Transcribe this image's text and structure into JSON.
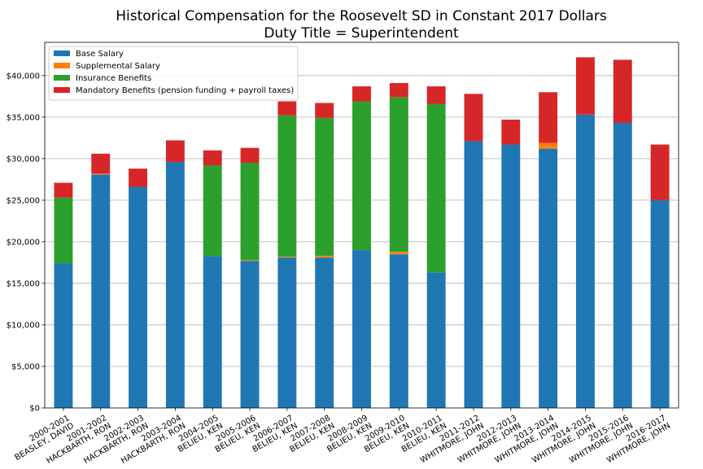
{
  "chart_data": {
    "type": "bar",
    "stacked": true,
    "title": "Historical Compensation for the Roosevelt SD in Constant 2017 Dollars",
    "subtitle": "Duty Title = Superintendent",
    "xlabel": "",
    "ylabel": "",
    "ylim": [
      0,
      44000
    ],
    "y_ticks": [
      0,
      5000,
      10000,
      15000,
      20000,
      25000,
      30000,
      35000,
      40000
    ],
    "y_tick_labels": [
      "$0",
      "$5,000",
      "$10,000",
      "$15,000",
      "$20,000",
      "$25,000",
      "$30,000",
      "$35,000",
      "$40,000"
    ],
    "grid": "horizontal",
    "legend_position": "top-left",
    "categories": [
      "2000-2001 BEASLEY, DAVID",
      "2001-2002 HACKBARTH, RON",
      "2002-2003 HACKBARTH, RON",
      "2003-2004 HACKBARTH, RON",
      "2004-2005 BELIEU, KEN",
      "2005-2006 BELIEU, KEN",
      "2006-2007 BELIEU, KEN",
      "2007-2008 BELIEU, KEN",
      "2008-2009 BELIEU, KEN",
      "2009-2010 BELIEU, KEN",
      "2010-2011 BELIEU, KEN",
      "2011-2012 WHITMORE, JOHN",
      "2012-2013 WHITMORE, JOHN",
      "2013-2014 WHITMORE, JOHN",
      "2014-2015 WHITMORE, JOHN",
      "2015-2016 WHITMORE, JOHN",
      "2016-2017 WHITMORE, JOHN"
    ],
    "category_lines": [
      [
        "2000-2001",
        "BEASLEY, DAVID"
      ],
      [
        "2001-2002",
        "HACKBARTH, RON"
      ],
      [
        "2002-2003",
        "HACKBARTH, RON"
      ],
      [
        "2003-2004",
        "HACKBARTH, RON"
      ],
      [
        "2004-2005",
        "BELIEU, KEN"
      ],
      [
        "2005-2006",
        "BELIEU, KEN"
      ],
      [
        "2006-2007",
        "BELIEU, KEN"
      ],
      [
        "2007-2008",
        "BELIEU, KEN"
      ],
      [
        "2008-2009",
        "BELIEU, KEN"
      ],
      [
        "2009-2010",
        "BELIEU, KEN"
      ],
      [
        "2010-2011",
        "BELIEU, KEN"
      ],
      [
        "2011-2012",
        "WHITMORE, JOHN"
      ],
      [
        "2012-2013",
        "WHITMORE, JOHN"
      ],
      [
        "2013-2014",
        "WHITMORE, JOHN"
      ],
      [
        "2014-2015",
        "WHITMORE, JOHN"
      ],
      [
        "2015-2016",
        "WHITMORE, JOHN"
      ],
      [
        "2016-2017",
        "WHITMORE, JOHN"
      ]
    ],
    "series": [
      {
        "name": "Base Salary",
        "color": "#1f77b4",
        "values": [
          17400,
          28100,
          26600,
          29600,
          18300,
          17700,
          18100,
          18100,
          19000,
          18500,
          16300,
          32100,
          31700,
          31200,
          35300,
          34300,
          25000
        ]
      },
      {
        "name": "Supplemental Salary",
        "color": "#ff7f0e",
        "values": [
          0,
          100,
          0,
          0,
          0,
          100,
          100,
          200,
          0,
          300,
          0,
          0,
          0,
          700,
          0,
          0,
          0
        ]
      },
      {
        "name": "Insurance Benefits",
        "color": "#2ca02c",
        "values": [
          7900,
          0,
          0,
          0,
          10900,
          11700,
          17000,
          16600,
          17900,
          18600,
          20300,
          0,
          0,
          0,
          0,
          0,
          0
        ]
      },
      {
        "name": "Mandatory Benefits (pension funding + payroll taxes)",
        "color": "#d62728",
        "values": [
          1800,
          2400,
          2200,
          2600,
          1800,
          1800,
          1700,
          1800,
          1800,
          1700,
          2100,
          5700,
          3000,
          6100,
          6900,
          7600,
          6700
        ]
      }
    ]
  }
}
